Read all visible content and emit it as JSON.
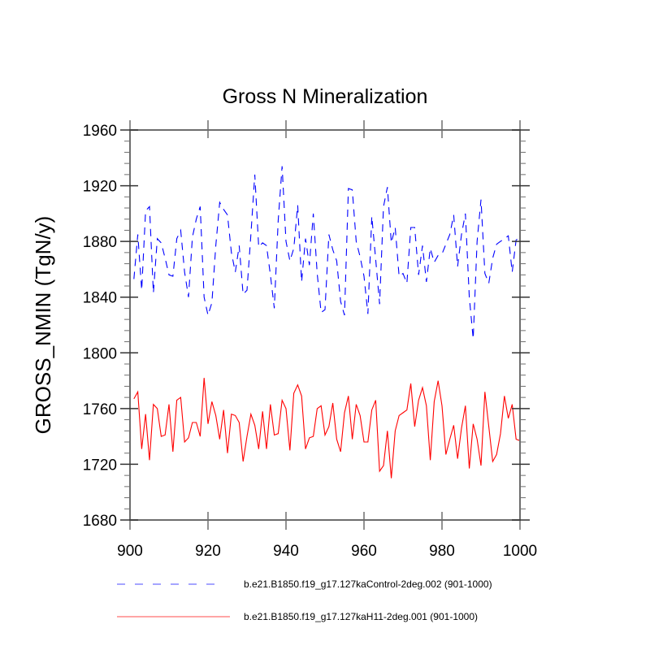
{
  "chart_data": {
    "type": "line",
    "title": "Gross N Mineralization",
    "xlabel": "",
    "ylabel": "GROSS_NMIN  (TgN/y)",
    "xlim": [
      900,
      1000
    ],
    "ylim": [
      1680,
      1960
    ],
    "x_ticks": [
      900,
      920,
      940,
      960,
      980,
      1000
    ],
    "x_tick_labels": [
      "900",
      "920",
      "940",
      "960",
      "980",
      "1000"
    ],
    "y_ticks": [
      1680,
      1720,
      1760,
      1800,
      1840,
      1880,
      1920,
      1960
    ],
    "y_tick_labels": [
      "1680",
      "1720",
      "1760",
      "1800",
      "1840",
      "1880",
      "1920",
      "1960"
    ],
    "x_minor_step": 4,
    "y_minor_step": 8,
    "grid": false,
    "legend_position": "bottom",
    "x": [
      901,
      902,
      903,
      904,
      905,
      906,
      907,
      908,
      909,
      910,
      911,
      912,
      913,
      914,
      915,
      916,
      917,
      918,
      919,
      920,
      921,
      922,
      923,
      924,
      925,
      926,
      927,
      928,
      929,
      930,
      931,
      932,
      933,
      934,
      935,
      936,
      937,
      938,
      939,
      940,
      941,
      942,
      943,
      944,
      945,
      946,
      947,
      948,
      949,
      950,
      951,
      952,
      953,
      954,
      955,
      956,
      957,
      958,
      959,
      960,
      961,
      962,
      963,
      964,
      965,
      966,
      967,
      968,
      969,
      970,
      971,
      972,
      973,
      974,
      975,
      976,
      977,
      978,
      979,
      980,
      981,
      982,
      983,
      984,
      985,
      986,
      987,
      988,
      989,
      990,
      991,
      992,
      993,
      994,
      995,
      996,
      997,
      998,
      999,
      1000
    ],
    "series": [
      {
        "name": "b.e21.B1850.f19_g17.127kaControl-2deg.002 (901-1000)",
        "color": "#0000ff",
        "style": "dashed",
        "values": [
          1853,
          1885,
          1845,
          1902,
          1905,
          1843,
          1882,
          1879,
          1868,
          1856,
          1855,
          1882,
          1888,
          1858,
          1840,
          1883,
          1896,
          1905,
          1840,
          1827,
          1836,
          1877,
          1908,
          1903,
          1899,
          1872,
          1858,
          1877,
          1842,
          1845,
          1885,
          1928,
          1876,
          1879,
          1877,
          1856,
          1832,
          1895,
          1934,
          1880,
          1866,
          1875,
          1906,
          1851,
          1882,
          1863,
          1900,
          1857,
          1829,
          1831,
          1885,
          1874,
          1866,
          1837,
          1827,
          1918,
          1917,
          1880,
          1869,
          1855,
          1828,
          1898,
          1867,
          1835,
          1905,
          1919,
          1879,
          1890,
          1855,
          1857,
          1850,
          1890,
          1890,
          1856,
          1877,
          1851,
          1875,
          1865,
          1870,
          1871,
          1878,
          1885,
          1899,
          1862,
          1885,
          1900,
          1840,
          1810,
          1880,
          1910,
          1857,
          1850,
          1868,
          1878,
          1880,
          1882,
          1884,
          1858,
          1881,
          1883
        ]
      },
      {
        "name": "b.e21.B1850.f19_g17.127kaH11-2deg.001 (901-1000)",
        "color": "#ff0000",
        "style": "solid",
        "values": [
          1767,
          1772,
          1731,
          1756,
          1723,
          1763,
          1760,
          1740,
          1741,
          1763,
          1729,
          1766,
          1768,
          1736,
          1739,
          1750,
          1750,
          1740,
          1782,
          1749,
          1765,
          1755,
          1738,
          1759,
          1728,
          1756,
          1755,
          1750,
          1722,
          1740,
          1756,
          1748,
          1731,
          1758,
          1731,
          1763,
          1741,
          1742,
          1766,
          1760,
          1730,
          1771,
          1777,
          1769,
          1731,
          1739,
          1740,
          1760,
          1762,
          1741,
          1747,
          1764,
          1738,
          1729,
          1757,
          1769,
          1738,
          1763,
          1755,
          1736,
          1736,
          1759,
          1766,
          1715,
          1719,
          1744,
          1710,
          1744,
          1755,
          1757,
          1759,
          1778,
          1747,
          1766,
          1775,
          1762,
          1723,
          1765,
          1780,
          1762,
          1727,
          1738,
          1748,
          1724,
          1746,
          1762,
          1717,
          1749,
          1738,
          1719,
          1772,
          1747,
          1722,
          1727,
          1742,
          1769,
          1753,
          1763,
          1738,
          1737
        ]
      }
    ]
  }
}
